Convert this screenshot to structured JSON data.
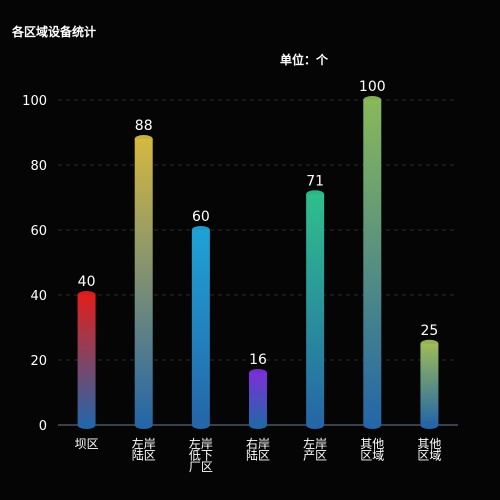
{
  "chart_data": {
    "type": "bar",
    "title": "各区域设备统计",
    "unit_label": "单位：个",
    "categories": [
      "坝区",
      "左岸\n陆区",
      "左岸\n低下\n厂区",
      "右岸\n陆区",
      "左岸\n产区",
      "其他\n区域",
      "其他\n区域"
    ],
    "values": [
      40,
      88,
      60,
      16,
      71,
      100,
      25
    ],
    "top_colors": [
      "#e0201c",
      "#d4b840",
      "#1fa2d6",
      "#7a30d8",
      "#2fbf8c",
      "#88b85a",
      "#9cba5a"
    ],
    "base_color": "#2566a8",
    "ylim": [
      0,
      100
    ],
    "yticks": [
      0,
      20,
      40,
      60,
      80,
      100
    ],
    "grid": true
  }
}
